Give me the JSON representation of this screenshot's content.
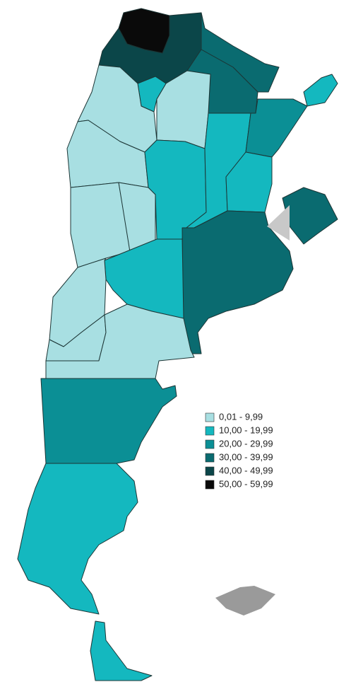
{
  "legend": [
    {
      "label": "0,01 - 9,99",
      "color": "#a8dfe2"
    },
    {
      "label": "10,00 - 19,99",
      "color": "#14b8bf"
    },
    {
      "label": "20,00 - 29,99",
      "color": "#0b8f95"
    },
    {
      "label": "30,00 - 39,99",
      "color": "#0a6b70"
    },
    {
      "label": "40,00 - 49,99",
      "color": "#0b4649"
    },
    {
      "label": "50,00 - 59,99",
      "color": "#0a0a0a"
    }
  ]
}
